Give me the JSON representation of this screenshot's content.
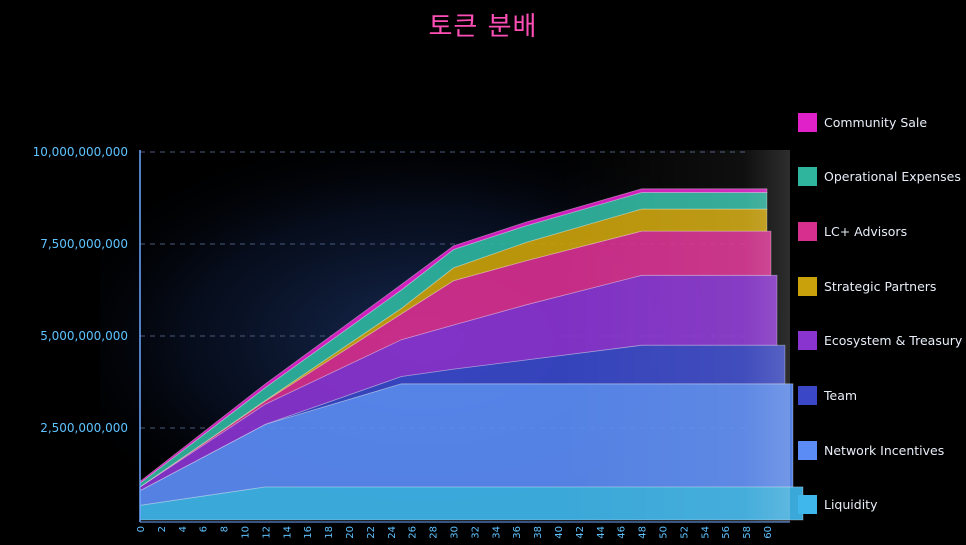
{
  "chart_data": {
    "type": "area",
    "title": "토큰 분배",
    "xlabel": "",
    "ylabel": "",
    "ylim": [
      0,
      10000000000
    ],
    "y_ticks": [
      "2,500,000,000",
      "5,000,000,000",
      "7,500,000,000",
      "10,000,000,000"
    ],
    "x_ticks": [
      "0",
      "2",
      "4",
      "6",
      "8",
      "10",
      "12",
      "14",
      "16",
      "18",
      "20",
      "22",
      "24",
      "26",
      "28",
      "30",
      "32",
      "34",
      "36",
      "38",
      "40",
      "42",
      "44",
      "46",
      "48",
      "50",
      "52",
      "54",
      "56",
      "58",
      "60"
    ],
    "grid": true,
    "legend_position": "right",
    "x": [
      0,
      12,
      25,
      30,
      37,
      48,
      60
    ],
    "series": [
      {
        "name": "Liquidity",
        "color": "#3fb6ec",
        "values": [
          400000000,
          900000000,
          900000000,
          900000000,
          900000000,
          900000000,
          900000000
        ]
      },
      {
        "name": "Network Incentives",
        "color": "#5b8cf5",
        "values": [
          400000000,
          1700000000,
          2800000000,
          2800000000,
          2800000000,
          2800000000,
          2800000000
        ]
      },
      {
        "name": "Team",
        "color": "#3a48c8",
        "values": [
          0,
          0,
          200000000,
          400000000,
          650000000,
          1050000000,
          1050000000
        ]
      },
      {
        "name": "Ecosystem & Treasury",
        "color": "#8a34d0",
        "values": [
          100000000,
          550000000,
          1000000000,
          1200000000,
          1500000000,
          1900000000,
          1900000000
        ]
      },
      {
        "name": "LC+ Advisors",
        "color": "#d62f8e",
        "values": [
          0,
          80000000,
          700000000,
          1200000000,
          1200000000,
          1200000000,
          1200000000
        ]
      },
      {
        "name": "Strategic Partners",
        "color": "#c9a10a",
        "values": [
          0,
          20000000,
          150000000,
          350000000,
          500000000,
          600000000,
          600000000
        ]
      },
      {
        "name": "Operational Expenses",
        "color": "#2fb59e",
        "values": [
          100000000,
          350000000,
          500000000,
          500000000,
          450000000,
          450000000,
          450000000
        ]
      },
      {
        "name": "Community Sale",
        "color": "#e020c8",
        "values": [
          50000000,
          100000000,
          150000000,
          100000000,
          100000000,
          100000000,
          100000000
        ]
      }
    ],
    "legend_order": [
      "Community Sale",
      "Operational Expenses",
      "LC+ Advisors",
      "Strategic Partners",
      "Ecosystem & Treasury",
      "Team",
      "Network Incentives",
      "Liquidity"
    ],
    "colors": {
      "background": "#000000",
      "axis": "#6fa8ff",
      "tick_text": "#5fc3ff",
      "grid": "#4a5a7a",
      "title": "#ff4fb6"
    }
  }
}
